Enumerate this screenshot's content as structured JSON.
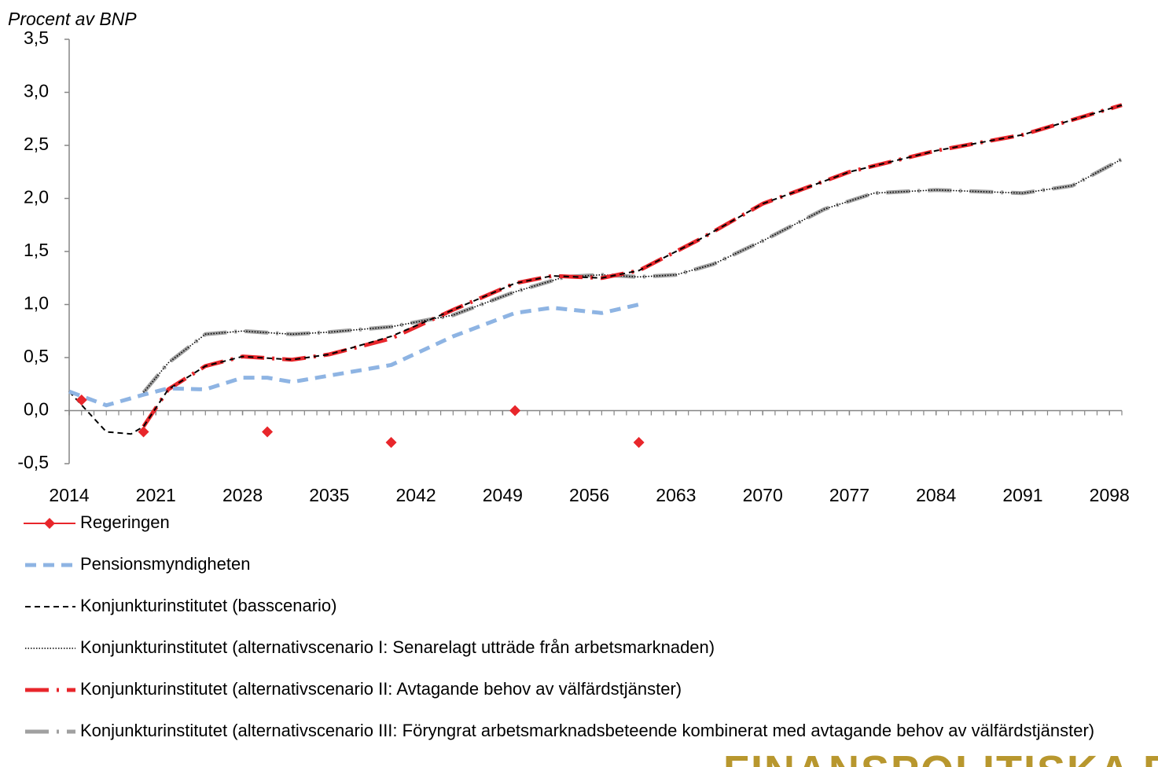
{
  "chart_data": {
    "type": "line",
    "y_label": "Procent av BNP",
    "xlim": [
      2014,
      2099
    ],
    "xticks": [
      2014,
      2021,
      2028,
      2035,
      2042,
      2049,
      2056,
      2063,
      2070,
      2077,
      2084,
      2091,
      2098
    ],
    "ylim": [
      -0.5,
      3.5
    ],
    "yticks": [
      {
        "value": -0.5,
        "label": "-0,5"
      },
      {
        "value": 0,
        "label": "0,0"
      },
      {
        "value": 0.5,
        "label": "0,5"
      },
      {
        "value": 1,
        "label": "1,0"
      },
      {
        "value": 1.5,
        "label": "1,5"
      },
      {
        "value": 2,
        "label": "2,0"
      },
      {
        "value": 2.5,
        "label": "2,5"
      },
      {
        "value": 3,
        "label": "3,0"
      },
      {
        "value": 3.5,
        "label": "3,5"
      }
    ],
    "legend": "bottom",
    "series": [
      {
        "name": "Regeringen",
        "color": "#e8262b",
        "style": "markers",
        "x": [
          2015,
          2020,
          2030,
          2040,
          2050,
          2060
        ],
        "values": [
          0.1,
          -0.2,
          -0.2,
          -0.3,
          0.0,
          -0.3
        ]
      },
      {
        "name": "Pensionsmyndigheten",
        "color": "#8eb4e3",
        "style": "dashed-thick",
        "x": [
          2014,
          2017,
          2020,
          2022,
          2025,
          2028,
          2030,
          2032,
          2035,
          2040,
          2045,
          2050,
          2053,
          2057,
          2060
        ],
        "values": [
          0.18,
          0.05,
          0.15,
          0.21,
          0.2,
          0.31,
          0.31,
          0.27,
          0.33,
          0.43,
          0.7,
          0.92,
          0.97,
          0.92,
          1.0
        ]
      },
      {
        "name": "Konjunkturinstitutet (basscenario)",
        "color": "#000000",
        "style": "dashed",
        "x": [
          2014,
          2017,
          2019,
          2020,
          2022,
          2025,
          2028,
          2032,
          2035,
          2040,
          2045,
          2050,
          2053,
          2057,
          2060,
          2065,
          2070,
          2077,
          2084,
          2091,
          2099
        ],
        "values": [
          0.18,
          -0.2,
          -0.22,
          -0.15,
          0.2,
          0.42,
          0.51,
          0.48,
          0.53,
          0.7,
          0.95,
          1.2,
          1.27,
          1.25,
          1.32,
          1.62,
          1.95,
          2.25,
          2.45,
          2.6,
          2.88
        ]
      },
      {
        "name": "Konjunkturinstitutet (alternativscenario I: Senarelagt utträde från arbetsmarknaden)",
        "color": "#000000",
        "style": "dotted",
        "x": [
          2020,
          2022,
          2025,
          2028,
          2032,
          2035,
          2040,
          2045,
          2050,
          2054,
          2057,
          2060,
          2063,
          2066,
          2070,
          2075,
          2079,
          2084,
          2091,
          2095,
          2099
        ],
        "values": [
          0.17,
          0.45,
          0.72,
          0.75,
          0.72,
          0.74,
          0.79,
          0.9,
          1.12,
          1.26,
          1.28,
          1.26,
          1.28,
          1.38,
          1.6,
          1.9,
          2.05,
          2.08,
          2.05,
          2.12,
          2.37
        ]
      },
      {
        "name": "Konjunkturinstitutet (alternativscenario II: Avtagande behov av välfärdstjänster)",
        "color": "#e8262b",
        "style": "long-dash",
        "x": [
          2020,
          2022,
          2025,
          2028,
          2032,
          2035,
          2040,
          2045,
          2050,
          2053,
          2057,
          2060,
          2065,
          2070,
          2077,
          2084,
          2091,
          2099
        ],
        "values": [
          -0.15,
          0.2,
          0.42,
          0.51,
          0.48,
          0.53,
          0.68,
          0.95,
          1.2,
          1.27,
          1.25,
          1.32,
          1.62,
          1.95,
          2.25,
          2.45,
          2.6,
          2.88
        ]
      },
      {
        "name": "Konjunkturinstitutet (alternativscenario III: Föryngrat arbetsmarknadsbeteende kombinerat med avtagande behov av välfärdstjänster)",
        "color": "#a0a0a0",
        "style": "long-dash",
        "x": [
          2020,
          2022,
          2025,
          2028,
          2032,
          2035,
          2040,
          2045,
          2050,
          2054,
          2057,
          2060,
          2063,
          2066,
          2070,
          2075,
          2079,
          2084,
          2091,
          2095,
          2099
        ],
        "values": [
          0.17,
          0.45,
          0.72,
          0.75,
          0.72,
          0.74,
          0.79,
          0.9,
          1.12,
          1.26,
          1.28,
          1.26,
          1.28,
          1.38,
          1.6,
          1.9,
          2.05,
          2.08,
          2.05,
          2.12,
          2.37
        ]
      }
    ],
    "logo": "FINANSPOLITISKA R"
  }
}
